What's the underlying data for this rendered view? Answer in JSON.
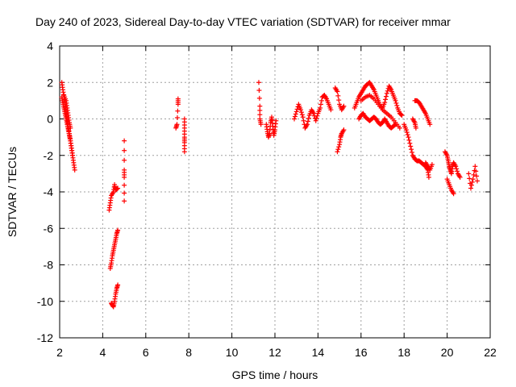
{
  "chart_data": {
    "type": "scatter",
    "title": "Day 240 of 2023, Sidereal Day-to-day VTEC variation (SDTVAR) for receiver mmar",
    "xlabel": "GPS time / hours",
    "ylabel": "SDTVAR / TECUs",
    "xlim": [
      2,
      22
    ],
    "ylim": [
      -12,
      4
    ],
    "xticks": [
      2,
      4,
      6,
      8,
      10,
      12,
      14,
      16,
      18,
      20,
      22
    ],
    "yticks": [
      -12,
      -10,
      -8,
      -6,
      -4,
      -2,
      0,
      2,
      4
    ],
    "grid": true,
    "marker": "+",
    "color": "#ff0000",
    "series": [
      {
        "name": "SDTVAR",
        "segments": [
          [
            [
              2.1,
              2.0
            ],
            [
              2.15,
              1.6
            ],
            [
              2.2,
              1.2
            ],
            [
              2.25,
              0.8
            ],
            [
              2.3,
              0.4
            ],
            [
              2.35,
              0.0
            ],
            [
              2.4,
              -0.4
            ],
            [
              2.45,
              -0.8
            ],
            [
              2.5,
              -1.2
            ],
            [
              2.55,
              -1.6
            ],
            [
              2.6,
              -2.0
            ],
            [
              2.65,
              -2.4
            ],
            [
              2.7,
              -2.8
            ]
          ],
          [
            [
              2.1,
              1.2
            ],
            [
              2.15,
              0.9
            ],
            [
              2.2,
              0.6
            ],
            [
              2.25,
              0.3
            ],
            [
              2.3,
              0.0
            ],
            [
              2.35,
              -0.3
            ],
            [
              2.4,
              -0.6
            ],
            [
              2.45,
              -0.9
            ],
            [
              2.5,
              -1.2
            ],
            [
              2.55,
              -1.6
            ],
            [
              2.6,
              -2.0
            ]
          ],
          [
            [
              2.2,
              1.3
            ],
            [
              2.3,
              1.0
            ],
            [
              2.35,
              0.6
            ],
            [
              2.4,
              0.2
            ],
            [
              2.45,
              -0.2
            ],
            [
              2.5,
              -0.5
            ]
          ],
          [
            [
              4.3,
              -5.0
            ],
            [
              4.35,
              -4.6
            ],
            [
              4.4,
              -4.2
            ],
            [
              4.5,
              -4.0
            ],
            [
              4.55,
              -3.6
            ],
            [
              4.6,
              -3.9
            ],
            [
              4.7,
              -3.8
            ]
          ],
          [
            [
              4.35,
              -8.2
            ],
            [
              4.4,
              -7.9
            ],
            [
              4.45,
              -7.5
            ],
            [
              4.5,
              -7.2
            ],
            [
              4.55,
              -6.9
            ],
            [
              4.6,
              -6.6
            ],
            [
              4.65,
              -6.3
            ],
            [
              4.7,
              -6.1
            ]
          ],
          [
            [
              4.4,
              -10.1
            ],
            [
              4.45,
              -10.2
            ],
            [
              4.5,
              -10.3
            ],
            [
              4.55,
              -10.0
            ],
            [
              4.6,
              -9.6
            ],
            [
              4.65,
              -9.3
            ],
            [
              4.7,
              -9.1
            ]
          ],
          [
            [
              5.0,
              -1.2
            ],
            [
              5.0,
              -2.8
            ],
            [
              5.0,
              -3.2
            ],
            [
              5.0,
              -4.5
            ]
          ],
          [
            [
              7.4,
              -0.5
            ],
            [
              7.45,
              -0.3
            ],
            [
              7.5,
              0.8
            ],
            [
              7.5,
              1.1
            ]
          ],
          [
            [
              7.8,
              0.0
            ],
            [
              7.8,
              -0.5
            ],
            [
              7.8,
              -1.0
            ],
            [
              7.8,
              -1.3
            ],
            [
              7.8,
              -1.8
            ]
          ],
          [
            [
              11.25,
              2.0
            ],
            [
              11.3,
              0.7
            ],
            [
              11.3,
              0.0
            ],
            [
              11.35,
              -0.3
            ]
          ],
          [
            [
              11.6,
              -0.3
            ],
            [
              11.65,
              -0.7
            ],
            [
              11.7,
              -1.0
            ],
            [
              11.75,
              -0.8
            ],
            [
              11.8,
              -0.2
            ],
            [
              11.85,
              0.1
            ],
            [
              11.9,
              -0.4
            ],
            [
              11.95,
              -0.9
            ],
            [
              12.0,
              -0.6
            ],
            [
              12.05,
              -0.1
            ]
          ],
          [
            [
              12.9,
              0.0
            ],
            [
              13.0,
              0.4
            ],
            [
              13.1,
              0.8
            ],
            [
              13.2,
              0.5
            ],
            [
              13.3,
              0.1
            ],
            [
              13.4,
              -0.5
            ],
            [
              13.5,
              -0.3
            ],
            [
              13.6,
              0.2
            ],
            [
              13.7,
              0.5
            ],
            [
              13.8,
              0.3
            ],
            [
              13.9,
              -0.1
            ],
            [
              14.0,
              0.3
            ],
            [
              14.1,
              0.6
            ],
            [
              14.2,
              1.2
            ],
            [
              14.3,
              1.3
            ],
            [
              14.4,
              1.1
            ],
            [
              14.5,
              0.8
            ],
            [
              14.6,
              0.5
            ]
          ],
          [
            [
              14.8,
              1.7
            ],
            [
              14.9,
              1.5
            ],
            [
              15.0,
              0.8
            ],
            [
              15.1,
              0.5
            ],
            [
              15.2,
              0.7
            ]
          ],
          [
            [
              14.9,
              -1.8
            ],
            [
              15.0,
              -1.4
            ],
            [
              15.05,
              -1.0
            ],
            [
              15.1,
              -0.8
            ],
            [
              15.2,
              -0.6
            ]
          ],
          [
            [
              15.7,
              0.6
            ],
            [
              15.8,
              0.9
            ],
            [
              15.9,
              1.2
            ],
            [
              16.0,
              1.4
            ],
            [
              16.1,
              1.6
            ],
            [
              16.2,
              1.8
            ],
            [
              16.3,
              1.9
            ],
            [
              16.4,
              2.0
            ],
            [
              16.5,
              1.8
            ],
            [
              16.6,
              1.6
            ],
            [
              16.7,
              1.3
            ],
            [
              16.8,
              1.0
            ],
            [
              16.9,
              0.7
            ],
            [
              17.0,
              0.6
            ],
            [
              17.1,
              0.9
            ],
            [
              17.2,
              1.4
            ],
            [
              17.3,
              1.8
            ],
            [
              17.4,
              1.6
            ],
            [
              17.5,
              1.3
            ],
            [
              17.6,
              1.0
            ],
            [
              17.7,
              0.6
            ],
            [
              17.8,
              0.3
            ],
            [
              17.9,
              0.2
            ]
          ],
          [
            [
              15.9,
              0.0
            ],
            [
              16.0,
              0.2
            ],
            [
              16.1,
              0.3
            ],
            [
              16.2,
              0.1
            ],
            [
              16.3,
              0.0
            ],
            [
              16.4,
              -0.1
            ],
            [
              16.5,
              0.0
            ],
            [
              16.6,
              0.1
            ],
            [
              16.7,
              0.0
            ],
            [
              16.8,
              -0.2
            ],
            [
              16.9,
              -0.3
            ],
            [
              17.0,
              -0.2
            ],
            [
              17.1,
              0.0
            ],
            [
              17.2,
              -0.2
            ],
            [
              17.3,
              -0.4
            ],
            [
              17.4,
              -0.5
            ],
            [
              17.5,
              -0.4
            ],
            [
              17.6,
              -0.3
            ]
          ],
          [
            [
              16.0,
              1.0
            ],
            [
              16.2,
              1.2
            ],
            [
              16.4,
              1.3
            ],
            [
              16.6,
              1.1
            ],
            [
              16.8,
              0.8
            ],
            [
              17.0,
              0.5
            ],
            [
              17.2,
              0.3
            ],
            [
              17.4,
              0.1
            ],
            [
              17.6,
              -0.2
            ],
            [
              17.8,
              -0.5
            ]
          ],
          [
            [
              18.0,
              -0.3
            ],
            [
              18.1,
              -0.6
            ],
            [
              18.2,
              -1.0
            ],
            [
              18.3,
              -1.5
            ],
            [
              18.4,
              -2.0
            ],
            [
              18.5,
              -2.2
            ],
            [
              18.6,
              -2.3
            ],
            [
              18.7,
              -2.3
            ],
            [
              18.8,
              -2.4
            ],
            [
              18.9,
              -2.5
            ],
            [
              19.0,
              -2.6
            ],
            [
              19.1,
              -2.8
            ],
            [
              19.15,
              -3.2
            ]
          ],
          [
            [
              18.4,
              0.0
            ],
            [
              18.5,
              -0.2
            ],
            [
              18.55,
              -0.5
            ]
          ],
          [
            [
              18.5,
              1.0
            ],
            [
              18.6,
              1.0
            ],
            [
              18.7,
              0.9
            ],
            [
              18.8,
              0.7
            ],
            [
              18.9,
              0.5
            ],
            [
              19.0,
              0.3
            ],
            [
              19.1,
              0.0
            ],
            [
              19.2,
              -0.3
            ]
          ],
          [
            [
              19.0,
              -2.4
            ],
            [
              19.1,
              -2.6
            ],
            [
              19.2,
              -2.8
            ],
            [
              19.3,
              -2.5
            ]
          ],
          [
            [
              19.9,
              -1.8
            ],
            [
              20.0,
              -2.0
            ],
            [
              20.05,
              -2.3
            ],
            [
              20.1,
              -2.6
            ],
            [
              20.15,
              -2.8
            ],
            [
              20.2,
              -3.0
            ],
            [
              20.25,
              -2.6
            ],
            [
              20.3,
              -2.4
            ],
            [
              20.4,
              -2.6
            ],
            [
              20.5,
              -3.0
            ],
            [
              20.6,
              -3.2
            ]
          ],
          [
            [
              20.0,
              -3.3
            ],
            [
              20.1,
              -3.6
            ],
            [
              20.2,
              -3.9
            ],
            [
              20.3,
              -4.1
            ]
          ],
          [
            [
              21.0,
              -3.0
            ],
            [
              21.1,
              -3.8
            ],
            [
              21.2,
              -3.3
            ],
            [
              21.3,
              -2.6
            ],
            [
              21.4,
              -3.4
            ]
          ]
        ]
      }
    ]
  }
}
